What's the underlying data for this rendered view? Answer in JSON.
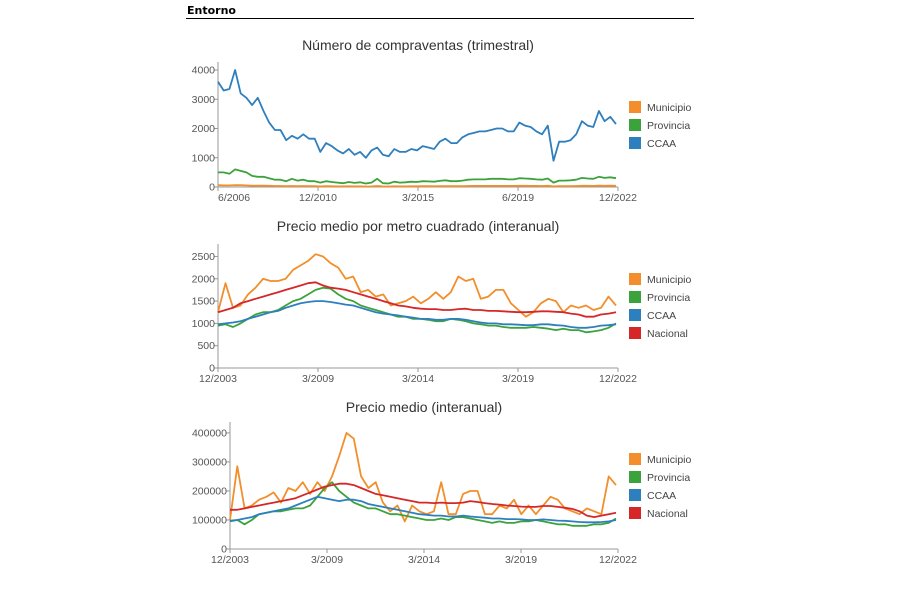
{
  "header": {
    "title": "Entorno"
  },
  "colors": {
    "Municipio": "#f28e2b",
    "Provincia": "#3ca23c",
    "CCAA": "#2e7fbe",
    "Nacional": "#d62728",
    "axis": "#999999"
  },
  "chart_data": [
    {
      "type": "line",
      "title": "Número de compraventas (trimestral)",
      "x_start": "6/2006",
      "x_end": "12/2022",
      "xticks": [
        "6/2006",
        "12/2010",
        "3/2015",
        "6/2019",
        "12/2022"
      ],
      "yticks": [
        0,
        1000,
        2000,
        3000,
        4000
      ],
      "ylim": [
        0,
        4000
      ],
      "legend": [
        "Municipio",
        "Provincia",
        "CCAA"
      ],
      "series": [
        {
          "name": "CCAA",
          "values": [
            3600,
            3300,
            3350,
            4000,
            3200,
            3050,
            2800,
            3050,
            2600,
            2200,
            1950,
            1950,
            1600,
            1750,
            1650,
            1800,
            1650,
            1650,
            1200,
            1500,
            1400,
            1250,
            1150,
            1300,
            1100,
            1200,
            1000,
            1250,
            1350,
            1100,
            1050,
            1300,
            1200,
            1200,
            1300,
            1250,
            1400,
            1350,
            1300,
            1550,
            1650,
            1500,
            1500,
            1700,
            1800,
            1850,
            1900,
            1900,
            1950,
            2000,
            2000,
            1900,
            1900,
            2200,
            2100,
            2050,
            1900,
            1800,
            2100,
            900,
            1550,
            1550,
            1600,
            1800,
            2250,
            2100,
            2050,
            2600,
            2250,
            2400,
            2150
          ]
        },
        {
          "name": "Provincia",
          "values": [
            500,
            500,
            450,
            600,
            550,
            500,
            380,
            350,
            350,
            300,
            250,
            250,
            200,
            280,
            220,
            250,
            200,
            200,
            150,
            200,
            170,
            150,
            130,
            170,
            140,
            160,
            120,
            150,
            280,
            130,
            120,
            180,
            150,
            160,
            180,
            170,
            200,
            190,
            180,
            210,
            230,
            200,
            200,
            220,
            250,
            260,
            260,
            260,
            280,
            280,
            280,
            260,
            260,
            300,
            290,
            280,
            260,
            250,
            290,
            150,
            220,
            220,
            230,
            250,
            310,
            290,
            280,
            350,
            310,
            330,
            300
          ]
        },
        {
          "name": "Municipio",
          "values": [
            60,
            55,
            55,
            65,
            60,
            55,
            45,
            45,
            45,
            40,
            35,
            35,
            30,
            35,
            30,
            35,
            30,
            30,
            22,
            28,
            25,
            22,
            20,
            25,
            20,
            22,
            18,
            22,
            35,
            20,
            18,
            25,
            22,
            22,
            25,
            24,
            28,
            26,
            25,
            30,
            32,
            28,
            28,
            30,
            35,
            36,
            36,
            36,
            38,
            38,
            38,
            36,
            36,
            42,
            40,
            38,
            36,
            35,
            40,
            20,
            30,
            30,
            32,
            35,
            42,
            40,
            38,
            48,
            42,
            45,
            40
          ]
        }
      ]
    },
    {
      "type": "line",
      "title": "Precio medio por metro cuadrado (interanual)",
      "x_start": "12/2003",
      "x_end": "12/2022",
      "xticks": [
        "12/2003",
        "3/2009",
        "3/2014",
        "3/2019",
        "12/2022"
      ],
      "yticks": [
        0,
        500,
        1000,
        1500,
        2000,
        2500
      ],
      "ylim": [
        0,
        2600
      ],
      "legend": [
        "Municipio",
        "Provincia",
        "CCAA",
        "Nacional"
      ],
      "series": [
        {
          "name": "Municipio",
          "values": [
            1250,
            1900,
            1350,
            1400,
            1650,
            1800,
            2000,
            1950,
            1950,
            2000,
            2200,
            2300,
            2400,
            2550,
            2500,
            2350,
            2250,
            2000,
            2050,
            1700,
            1750,
            1600,
            1650,
            1400,
            1450,
            1500,
            1600,
            1450,
            1550,
            1700,
            1550,
            1700,
            2050,
            1950,
            2000,
            1550,
            1600,
            1750,
            1750,
            1450,
            1300,
            1150,
            1250,
            1450,
            1550,
            1500,
            1250,
            1400,
            1350,
            1400,
            1300,
            1350,
            1600,
            1400
          ]
        },
        {
          "name": "Provincia",
          "values": [
            950,
            980,
            920,
            1000,
            1100,
            1200,
            1250,
            1250,
            1300,
            1400,
            1500,
            1550,
            1650,
            1750,
            1800,
            1780,
            1650,
            1550,
            1500,
            1400,
            1350,
            1300,
            1250,
            1200,
            1150,
            1150,
            1100,
            1100,
            1080,
            1050,
            1050,
            1100,
            1080,
            1050,
            1000,
            980,
            950,
            950,
            920,
            900,
            900,
            900,
            920,
            900,
            880,
            850,
            880,
            850,
            850,
            800,
            820,
            850,
            900,
            1000
          ]
        },
        {
          "name": "CCAA",
          "values": [
            980,
            1000,
            1020,
            1050,
            1100,
            1150,
            1200,
            1250,
            1280,
            1350,
            1400,
            1450,
            1480,
            1500,
            1500,
            1480,
            1450,
            1420,
            1400,
            1350,
            1300,
            1250,
            1220,
            1200,
            1180,
            1150,
            1130,
            1100,
            1100,
            1080,
            1080,
            1100,
            1100,
            1080,
            1050,
            1020,
            1000,
            1000,
            980,
            980,
            970,
            960,
            960,
            980,
            980,
            960,
            950,
            920,
            900,
            900,
            920,
            950,
            960,
            980
          ]
        },
        {
          "name": "Nacional",
          "values": [
            1250,
            1300,
            1350,
            1450,
            1500,
            1550,
            1600,
            1650,
            1700,
            1750,
            1800,
            1850,
            1900,
            1920,
            1850,
            1800,
            1780,
            1750,
            1700,
            1650,
            1600,
            1550,
            1500,
            1450,
            1400,
            1380,
            1350,
            1330,
            1320,
            1320,
            1300,
            1300,
            1320,
            1330,
            1300,
            1300,
            1280,
            1280,
            1270,
            1260,
            1250,
            1250,
            1260,
            1270,
            1270,
            1260,
            1250,
            1220,
            1200,
            1150,
            1150,
            1200,
            1220,
            1250
          ]
        }
      ]
    },
    {
      "type": "line",
      "title": "Precio medio (interanual)",
      "x_start": "12/2003",
      "x_end": "12/2022",
      "xticks": [
        "12/2003",
        "3/2009",
        "3/2014",
        "3/2019",
        "12/2022"
      ],
      "yticks": [
        0,
        100000,
        200000,
        300000,
        400000
      ],
      "ylim": [
        0,
        410000
      ],
      "legend": [
        "Municipio",
        "Provincia",
        "CCAA",
        "Nacional"
      ],
      "series": [
        {
          "name": "Municipio",
          "values": [
            100000,
            285000,
            140000,
            150000,
            170000,
            180000,
            195000,
            160000,
            210000,
            200000,
            230000,
            190000,
            230000,
            200000,
            250000,
            320000,
            400000,
            380000,
            250000,
            210000,
            230000,
            160000,
            130000,
            150000,
            95000,
            150000,
            130000,
            120000,
            130000,
            230000,
            120000,
            120000,
            190000,
            200000,
            200000,
            120000,
            120000,
            150000,
            140000,
            170000,
            120000,
            150000,
            120000,
            150000,
            180000,
            170000,
            140000,
            130000,
            120000,
            140000,
            130000,
            120000,
            250000,
            220000
          ]
        },
        {
          "name": "Provincia",
          "values": [
            95000,
            100000,
            85000,
            100000,
            120000,
            125000,
            130000,
            130000,
            135000,
            140000,
            140000,
            150000,
            180000,
            210000,
            230000,
            200000,
            180000,
            160000,
            150000,
            140000,
            140000,
            130000,
            120000,
            120000,
            115000,
            110000,
            105000,
            100000,
            100000,
            105000,
            100000,
            110000,
            110000,
            105000,
            100000,
            95000,
            90000,
            95000,
            90000,
            90000,
            95000,
            95000,
            100000,
            95000,
            90000,
            85000,
            85000,
            80000,
            80000,
            80000,
            85000,
            85000,
            90000,
            105000
          ]
        },
        {
          "name": "CCAA",
          "values": [
            98000,
            100000,
            105000,
            110000,
            120000,
            125000,
            130000,
            135000,
            140000,
            150000,
            160000,
            170000,
            180000,
            175000,
            170000,
            165000,
            170000,
            170000,
            165000,
            155000,
            150000,
            145000,
            140000,
            135000,
            130000,
            125000,
            120000,
            118000,
            115000,
            115000,
            112000,
            112000,
            115000,
            112000,
            110000,
            108000,
            105000,
            105000,
            103000,
            103000,
            102000,
            100000,
            100000,
            102000,
            100000,
            98000,
            97000,
            95000,
            93000,
            92000,
            92000,
            93000,
            95000,
            100000
          ]
        },
        {
          "name": "Nacional",
          "values": [
            135000,
            135000,
            140000,
            145000,
            150000,
            155000,
            160000,
            165000,
            170000,
            175000,
            185000,
            195000,
            205000,
            215000,
            220000,
            225000,
            225000,
            220000,
            210000,
            200000,
            190000,
            185000,
            180000,
            175000,
            170000,
            165000,
            160000,
            160000,
            158000,
            160000,
            158000,
            158000,
            160000,
            165000,
            162000,
            158000,
            155000,
            153000,
            150000,
            148000,
            146000,
            145000,
            145000,
            148000,
            148000,
            145000,
            142000,
            138000,
            130000,
            115000,
            110000,
            115000,
            120000,
            125000
          ]
        }
      ]
    }
  ]
}
